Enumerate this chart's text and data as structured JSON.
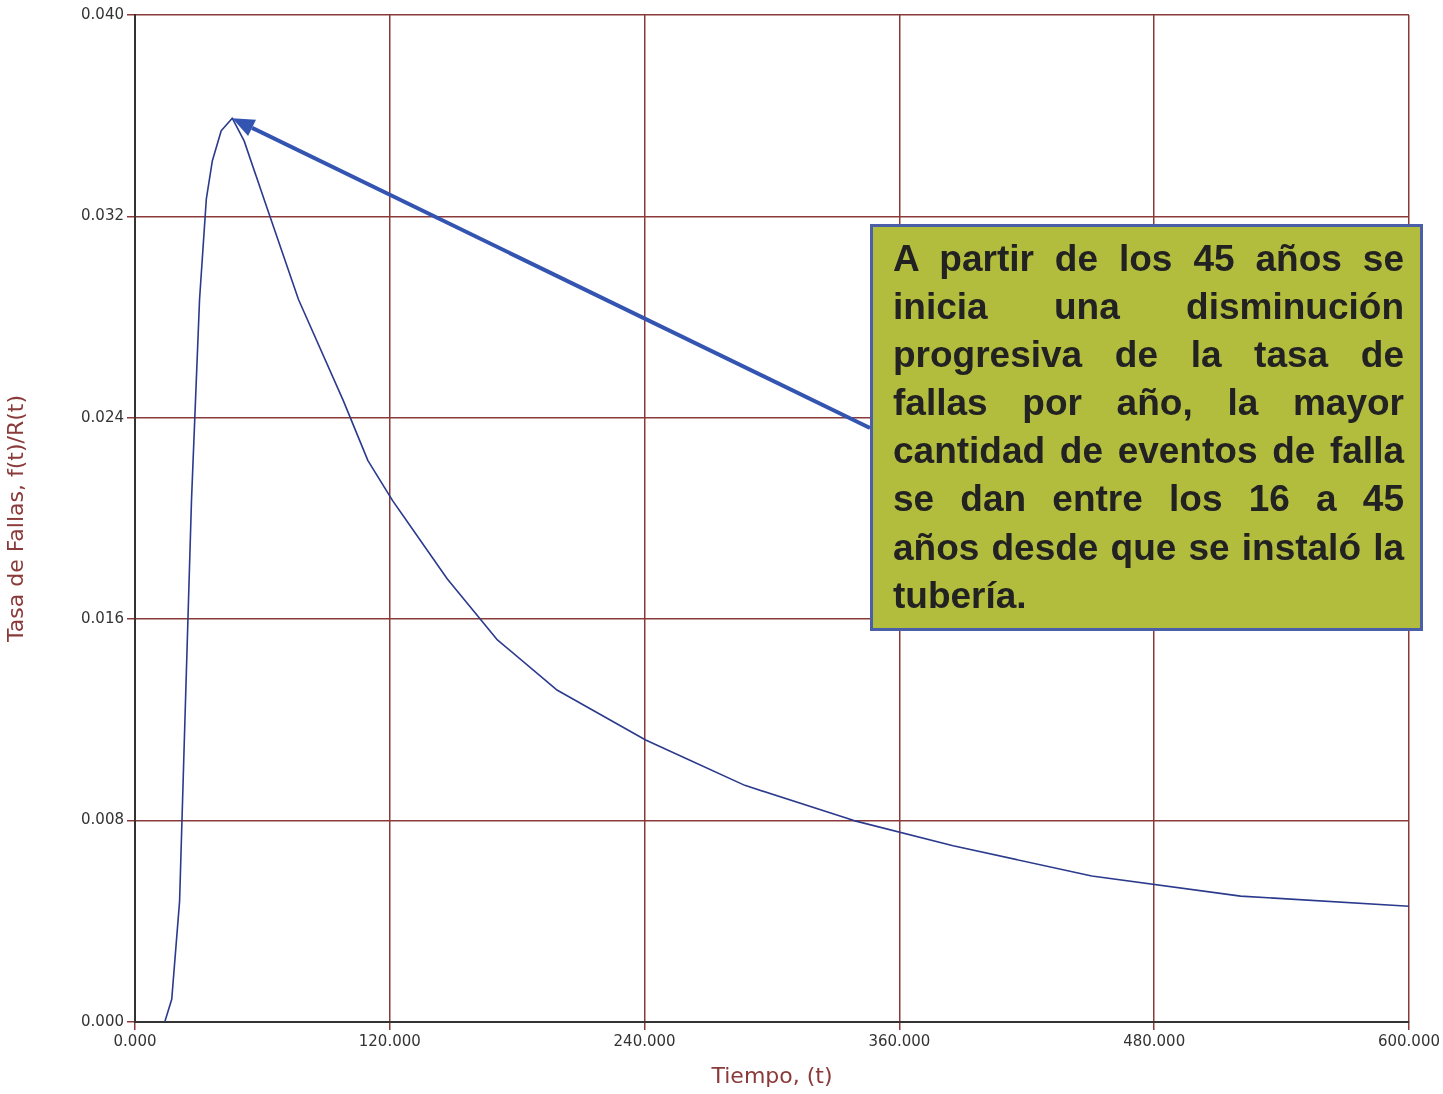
{
  "chart_data": {
    "type": "line",
    "xlabel": "Tiempo, (t)",
    "ylabel": "Tasa de Fallas, f(t)/R(t)",
    "x": [
      14.0,
      17.3,
      21.0,
      23.8,
      26.6,
      30.4,
      33.6,
      36.4,
      40.6,
      45.8,
      51.4,
      60.7,
      77.0,
      98.0,
      109.7,
      121.4,
      147.1,
      170.4,
      198.5,
      240.5,
      287.2,
      338.6,
      385.3,
      450.6,
      520.7,
      600
    ],
    "series": [
      {
        "color": "#2b3a8c",
        "values": [
          0,
          0.0009,
          0.0048,
          0.0128,
          0.0207,
          0.0287,
          0.0327,
          0.0342,
          0.0354,
          0.0359,
          0.035,
          0.0327,
          0.0287,
          0.0247,
          0.0223,
          0.0207,
          0.0176,
          0.0152,
          0.0132,
          0.0112,
          0.0094,
          0.008,
          0.007,
          0.0058,
          0.005,
          0.0046
        ]
      }
    ],
    "xlim": [
      0,
      600
    ],
    "xticks": [
      {
        "value": 0,
        "label": "0.000"
      },
      {
        "value": 120,
        "label": "120.000"
      },
      {
        "value": 240,
        "label": "240.000"
      },
      {
        "value": 360,
        "label": "360.000"
      },
      {
        "value": 480,
        "label": "480.000"
      },
      {
        "value": 600,
        "label": "600.000"
      }
    ],
    "ylim": [
      0,
      0.04
    ],
    "yticks": [
      {
        "value": 0,
        "label": "0.000"
      },
      {
        "value": 0.008,
        "label": "0.008"
      },
      {
        "value": 0.016,
        "label": "0.016"
      },
      {
        "value": 0.024,
        "label": "0.024"
      },
      {
        "value": 0.032,
        "label": "0.032"
      },
      {
        "value": 0.04,
        "label": "0.040"
      }
    ],
    "grid": true,
    "legend": false,
    "marker": "none",
    "line_style": "solid",
    "annotations": [
      "A partir de los 45 años se inicia una disminución progresiva de la tasa de fallas por año, la mayor cantidad de eventos de falla se dan entre los 16 a 45 años desde que se instaló la tubería."
    ]
  }
}
